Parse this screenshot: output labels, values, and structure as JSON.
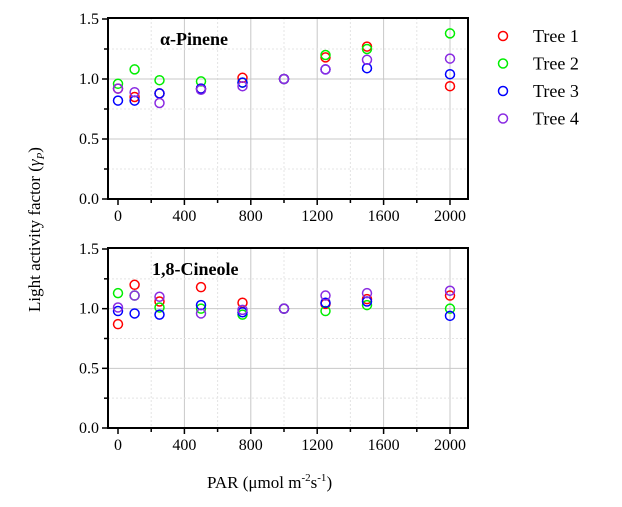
{
  "chart_data": [
    {
      "type": "scatter",
      "title": "α-Pinene",
      "xlabel": "PAR (μmol m-2s-1)",
      "ylabel": "Light activity factor (γP)",
      "xlim": [
        -50,
        2100
      ],
      "ylim": [
        0,
        1.5
      ],
      "xticks": [
        "0",
        "400",
        "800",
        "1200",
        "1600",
        "2000"
      ],
      "yticks": [
        "0.0",
        "0.5",
        "1.0",
        "1.5"
      ],
      "x": [
        0,
        100,
        250,
        500,
        750,
        1000,
        1250,
        1500,
        2000
      ],
      "series": [
        {
          "name": "Tree 1",
          "values": [
            0.92,
            0.85,
            0.88,
            0.92,
            1.01,
            1.0,
            1.18,
            1.27,
            0.94
          ]
        },
        {
          "name": "Tree 2",
          "values": [
            0.96,
            1.08,
            0.99,
            0.98,
            0.97,
            1.0,
            1.2,
            1.25,
            1.38
          ]
        },
        {
          "name": "Tree 3",
          "values": [
            0.82,
            0.82,
            0.88,
            0.92,
            0.97,
            1.0,
            1.08,
            1.09,
            1.04
          ]
        },
        {
          "name": "Tree 4",
          "values": [
            0.92,
            0.89,
            0.8,
            0.91,
            0.94,
            1.0,
            1.08,
            1.16,
            1.17
          ]
        }
      ]
    },
    {
      "type": "scatter",
      "title": "1,8-Cineole",
      "xlim": [
        -50,
        2100
      ],
      "ylim": [
        0,
        1.5
      ],
      "xticks": [
        "0",
        "400",
        "800",
        "1200",
        "1600",
        "2000"
      ],
      "yticks": [
        "0.0",
        "0.5",
        "1.0",
        "1.5"
      ],
      "x": [
        0,
        100,
        250,
        500,
        750,
        1000,
        1250,
        1500,
        2000
      ],
      "series": [
        {
          "name": "Tree 1",
          "values": [
            0.87,
            1.2,
            1.06,
            1.18,
            1.05,
            1.0,
            1.04,
            1.08,
            1.11
          ]
        },
        {
          "name": "Tree 2",
          "values": [
            1.13,
            1.11,
            1.01,
            1.0,
            0.95,
            1.0,
            0.98,
            1.03,
            1.0
          ]
        },
        {
          "name": "Tree 3",
          "values": [
            0.98,
            0.96,
            0.95,
            1.03,
            0.97,
            1.0,
            1.05,
            1.06,
            0.94
          ]
        },
        {
          "name": "Tree 4",
          "values": [
            1.01,
            1.11,
            1.1,
            0.96,
            0.99,
            1.0,
            1.11,
            1.13,
            1.15
          ]
        }
      ]
    }
  ],
  "legend": [
    {
      "label": "Tree 1",
      "color": "#ff0000"
    },
    {
      "label": "Tree 2",
      "color": "#00ee00"
    },
    {
      "label": "Tree 3",
      "color": "#0000ff"
    },
    {
      "label": "Tree 4",
      "color": "#8a2be2"
    }
  ],
  "axis": {
    "ylabel_main": "Light activity factor (",
    "ylabel_sym": "γ",
    "ylabel_sub": "P",
    "ylabel_end": ")",
    "xlabel_main": "PAR (μmol m",
    "xlabel_sup1": "-2",
    "xlabel_mid": "s",
    "xlabel_sup2": "-1",
    "xlabel_end": ")"
  }
}
